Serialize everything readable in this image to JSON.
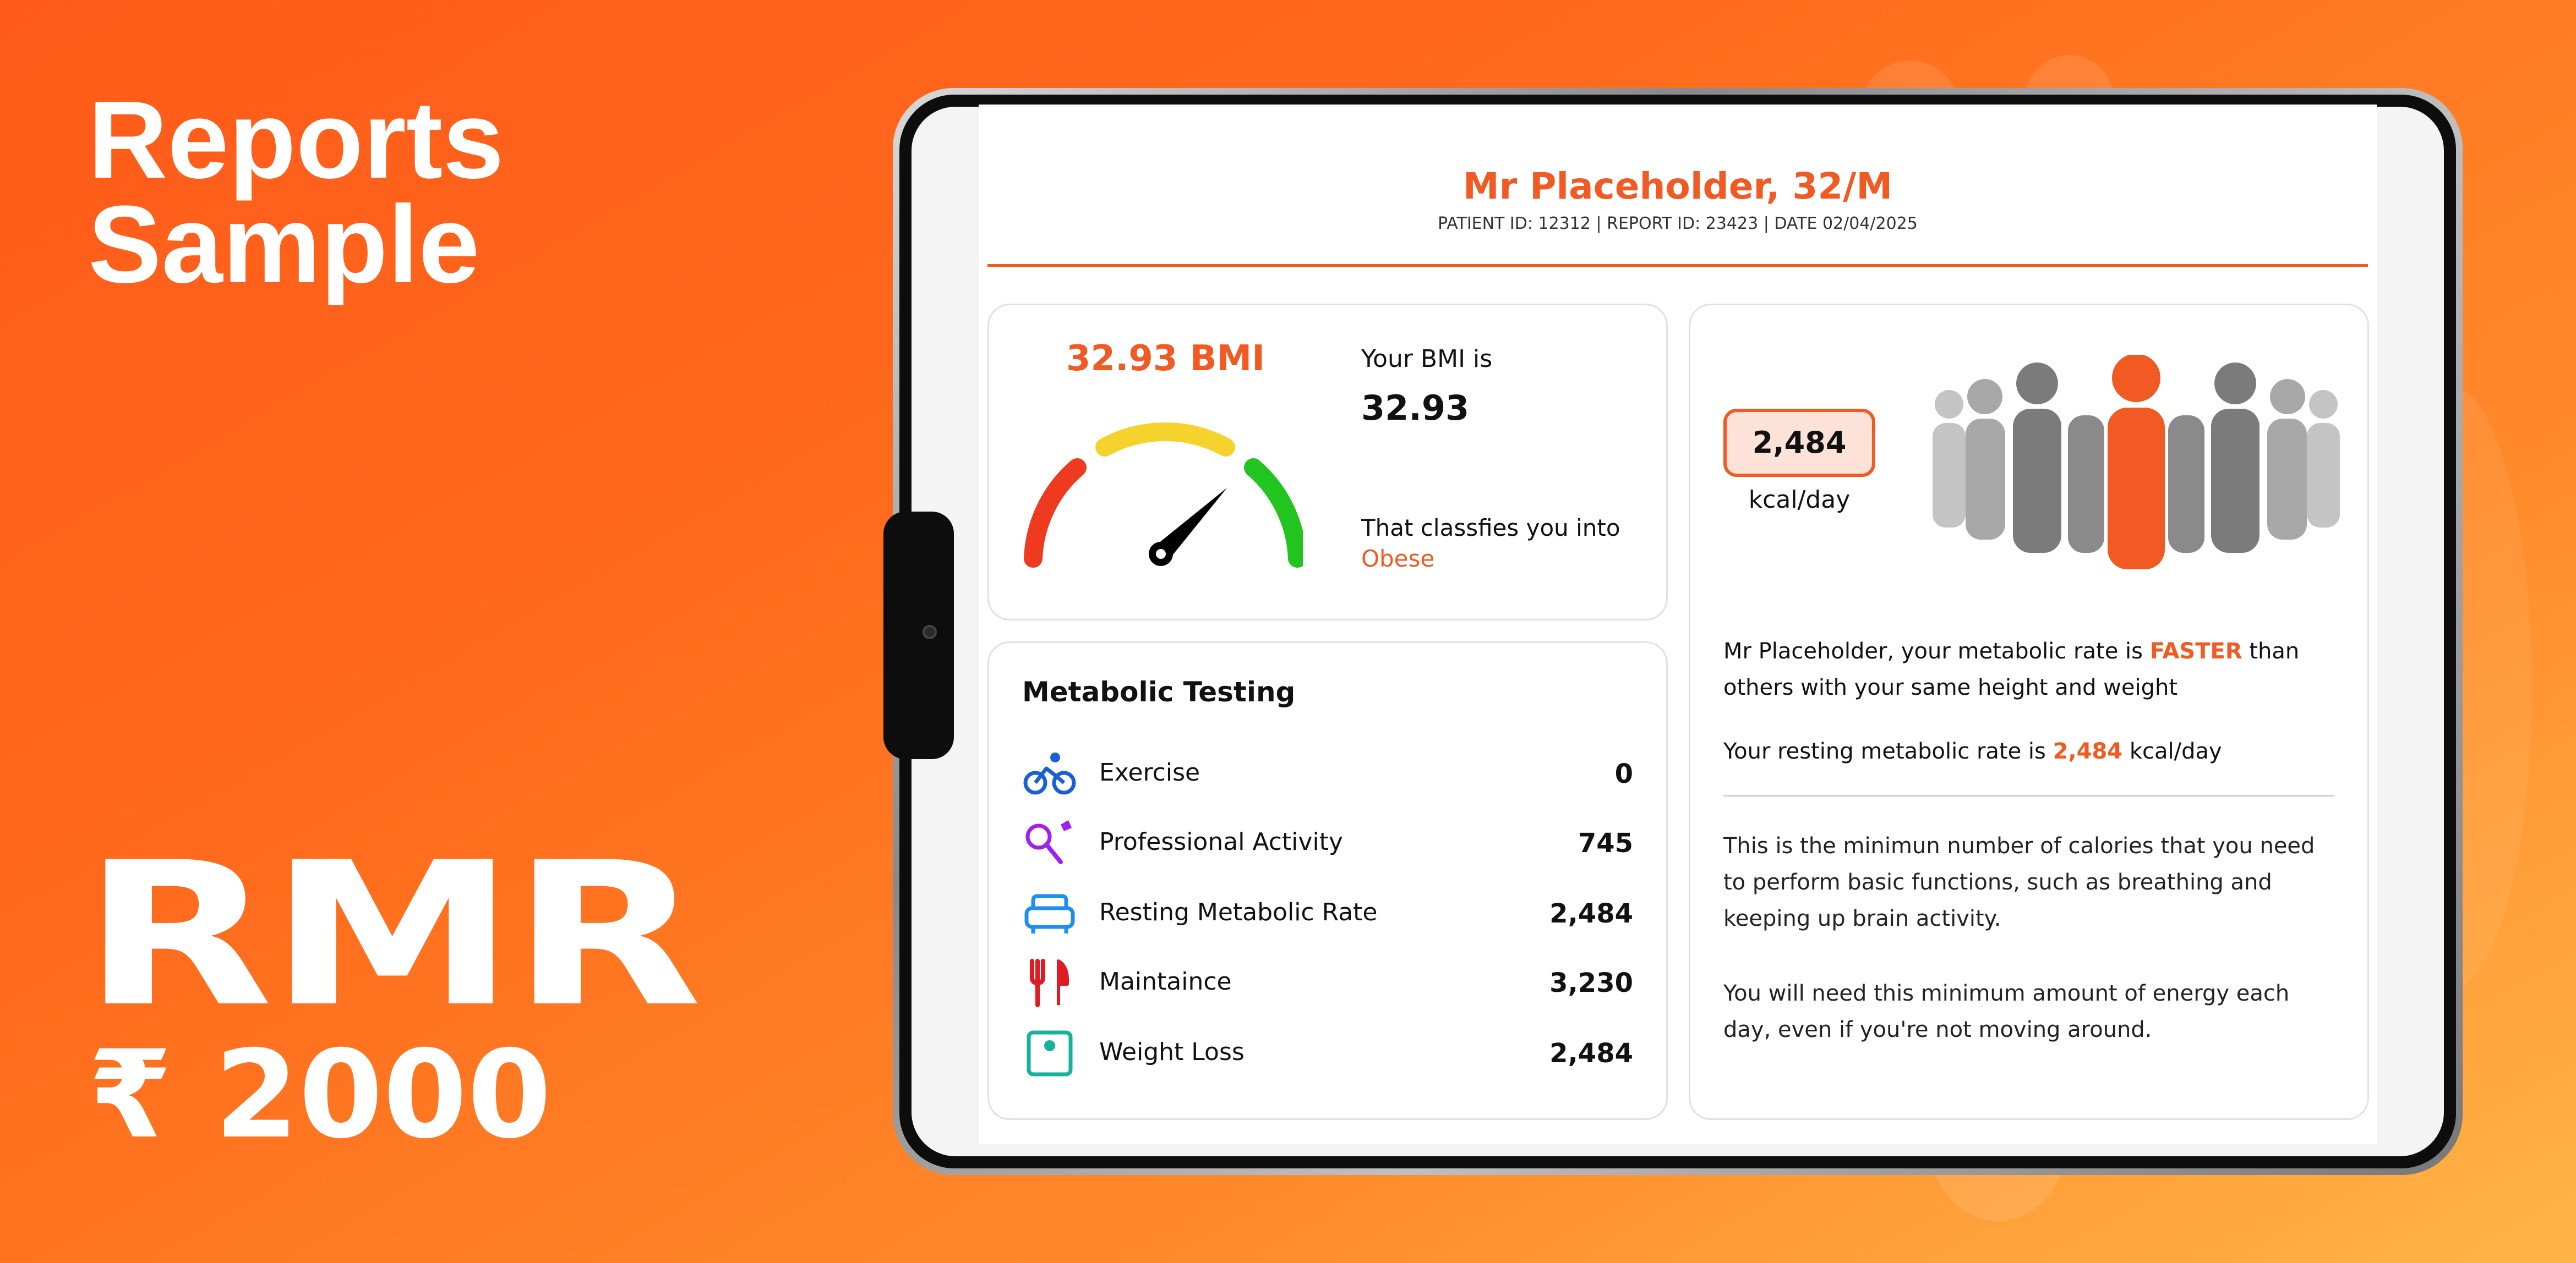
{
  "promo": {
    "title_line1": "Reports",
    "title_line2": "Sample",
    "product": "RMR",
    "price": "₹ 2000"
  },
  "report": {
    "patient_name": "Mr Placeholder, 32/M",
    "patient_meta": "PATIENT ID: 12312 | REPORT ID: 23423 | DATE 02/04/2025"
  },
  "bmi": {
    "headline": "32.93 BMI",
    "label_top": "Your BMI is",
    "value": "32.93",
    "label_class": "That classfies you into",
    "classification": "Obese",
    "gauge_colors": {
      "low": "#ee3b1f",
      "mid": "#f6d22c",
      "high": "#22c41f"
    }
  },
  "metabolic": {
    "title": "Metabolic Testing",
    "rows": [
      {
        "icon": "bicycle-icon",
        "label": "Exercise",
        "value": "0"
      },
      {
        "icon": "badminton-icon",
        "label": "Professional Activity",
        "value": "745"
      },
      {
        "icon": "sofa-icon",
        "label": "Resting Metabolic Rate",
        "value": "2,484"
      },
      {
        "icon": "fork-knife-icon",
        "label": "Maintaince",
        "value": "3,230"
      },
      {
        "icon": "scale-icon",
        "label": "Weight Loss",
        "value": "2,484"
      }
    ]
  },
  "rmr": {
    "kcal_value": "2,484",
    "kcal_unit": "kcal/day",
    "line1_a": "Mr Placeholder, your metabolic rate is",
    "line1_hl": "FASTER",
    "line1_b": "than others with your same height and weight",
    "line2_a": "Your resting metabolic rate is",
    "line2_hl": "2,484",
    "line2_b": "kcal/day",
    "body1": "This is the minimun number of calories that you need to perform basic functions, such as breathing and keeping up brain activity.",
    "body2": "You will need this minimum amount of energy each day, even if you're not moving around."
  },
  "colors": {
    "accent": "#f15a22",
    "background_start": "#ff5a1a",
    "background_end": "#ffb548"
  }
}
